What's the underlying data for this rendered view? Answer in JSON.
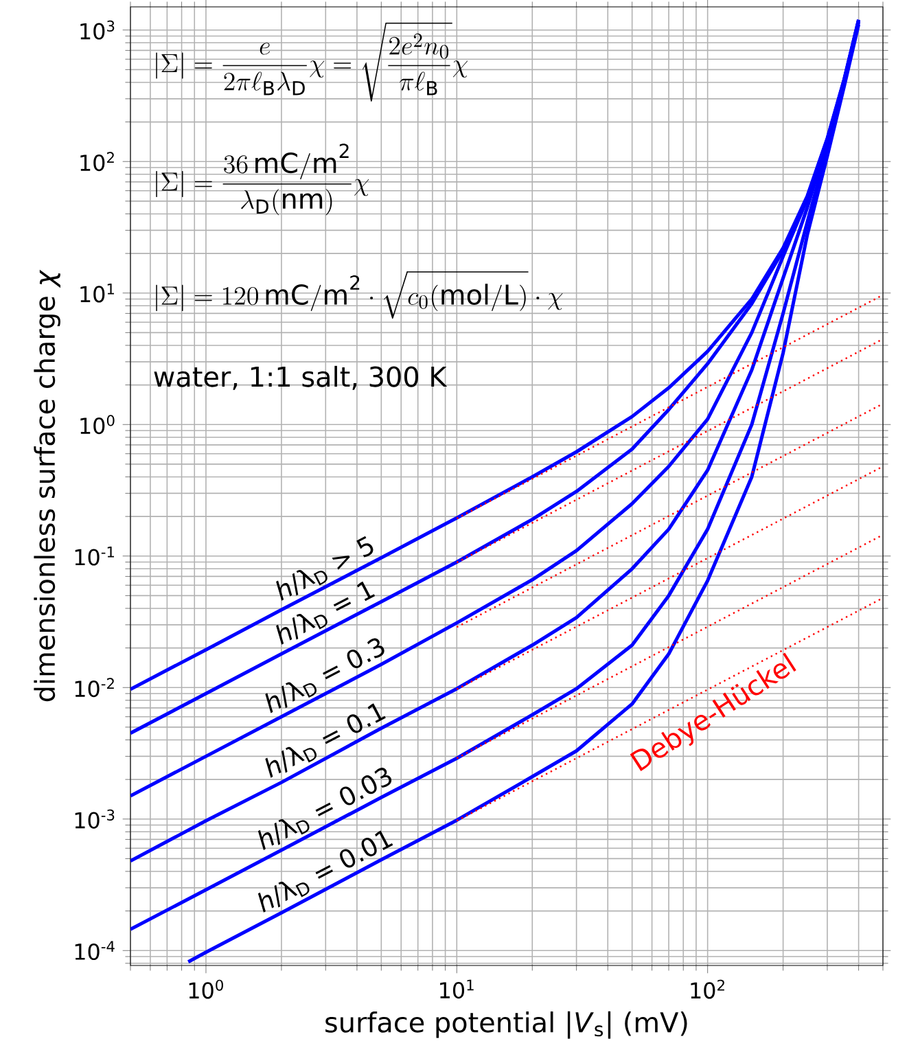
{
  "chart_data": {
    "type": "line",
    "log": "xy",
    "grid": true,
    "xlabel": "surface potential |*V*$_{s}$| (mV)",
    "ylabel": "dimensionless surface charge *χ*",
    "xlim": [
      0.5,
      500
    ],
    "ylim": [
      7.7e-05,
      1500
    ],
    "xticks": [
      {
        "value": 1,
        "label": "10$^{0}$"
      },
      {
        "value": 10,
        "label": "10$^{1}$"
      },
      {
        "value": 100,
        "label": "10$^{2}$"
      }
    ],
    "yticks": [
      {
        "value": 0.0001,
        "label": "10$^{-4}$"
      },
      {
        "value": 0.001,
        "label": "10$^{-3}$"
      },
      {
        "value": 0.01,
        "label": "10$^{-2}$"
      },
      {
        "value": 0.1,
        "label": "10$^{-1}$"
      },
      {
        "value": 1,
        "label": "10$^{0}$"
      },
      {
        "value": 10,
        "label": "10$^{1}$"
      },
      {
        "value": 100,
        "label": "10$^{2}$"
      },
      {
        "value": 1000,
        "label": "10$^{3}$"
      }
    ],
    "annotations": [
      "|\\Sigma| = \\frac{e}{2\\pi\\ell_\\mathrm{B}\\lambda_\\mathrm{D}}\\chi = \\sqrt{\\frac{2e^2n_0}{\\pi\\ell_\\mathrm{B}}}\\chi",
      "|\\Sigma| = \\frac{36\\,\\mathrm{mC/m^2}}{\\lambda_\\mathrm{D}(\\mathrm{nm})}\\chi",
      "|\\Sigma| = 120\\,\\mathrm{mC/m^2}\\cdot\\sqrt{c_0(\\mathrm{mol/L})}\\cdot\\chi",
      "water, 1:1 salt, 300 K",
      "Debye-Hückel"
    ],
    "series": [
      {
        "name": "*h*/λ$_{D}$ > 5",
        "color": "#0000ff",
        "line_style": "solid",
        "x": [
          0.5,
          1,
          2,
          5,
          10,
          20,
          30,
          50,
          70,
          100,
          150,
          200,
          250,
          300,
          350,
          400
        ],
        "values": [
          0.0097,
          0.0194,
          0.039,
          0.097,
          0.195,
          0.4,
          0.62,
          1.15,
          1.9,
          3.6,
          9,
          22,
          55,
          150,
          420,
          1200
        ]
      },
      {
        "name": "*h*/λ$_{D}$ = 1",
        "color": "#0000ff",
        "line_style": "solid",
        "x": [
          0.5,
          1,
          2,
          5,
          10,
          20,
          30,
          50,
          70,
          100,
          150,
          200,
          250,
          300,
          350,
          400
        ],
        "values": [
          0.0045,
          0.009,
          0.018,
          0.045,
          0.09,
          0.19,
          0.31,
          0.65,
          1.3,
          2.9,
          8.3,
          21,
          54,
          148,
          415,
          1190
        ]
      },
      {
        "name": "*h*/λ$_{D}$ = 0.3",
        "color": "#0000ff",
        "line_style": "solid",
        "x": [
          0.5,
          1,
          2,
          5,
          10,
          20,
          30,
          50,
          70,
          100,
          150,
          200,
          250,
          300,
          350,
          400
        ],
        "values": [
          0.0015,
          0.003,
          0.006,
          0.015,
          0.031,
          0.066,
          0.11,
          0.25,
          0.48,
          1.1,
          5,
          19,
          52,
          145,
          410,
          1180
        ]
      },
      {
        "name": "*h*/λ$_{D}$ = 0.1",
        "color": "#0000ff",
        "line_style": "solid",
        "x": [
          0.5,
          1,
          2,
          5,
          10,
          20,
          30,
          50,
          70,
          100,
          150,
          200,
          250,
          300,
          350,
          400
        ],
        "values": [
          0.00048,
          0.00097,
          0.0019,
          0.0049,
          0.0098,
          0.021,
          0.034,
          0.08,
          0.16,
          0.45,
          2.6,
          13,
          45,
          140,
          400,
          1170
        ]
      },
      {
        "name": "*h*/λ$_{D}$ = 0.03",
        "color": "#0000ff",
        "line_style": "solid",
        "x": [
          0.5,
          1,
          2,
          5,
          10,
          20,
          30,
          50,
          70,
          100,
          150,
          200,
          250,
          300,
          350,
          400
        ],
        "values": [
          0.000145,
          0.00029,
          0.00058,
          0.00146,
          0.0029,
          0.0062,
          0.0098,
          0.021,
          0.05,
          0.16,
          1.0,
          7,
          35,
          125,
          390,
          1150
        ]
      },
      {
        "name": "*h*/λ$_{D}$ = 0.01",
        "color": "#0000ff",
        "line_style": "solid",
        "x": [
          0.85,
          1,
          2,
          5,
          10,
          20,
          30,
          50,
          70,
          100,
          150,
          200,
          250,
          300,
          350,
          400
        ],
        "values": [
          8.2e-05,
          9.7e-05,
          0.000194,
          0.00049,
          0.00098,
          0.0021,
          0.0033,
          0.0075,
          0.018,
          0.065,
          0.4,
          3.5,
          28,
          110,
          370,
          1100
        ]
      },
      {
        "color": "#ff0000",
        "line_style": "dotted",
        "x": [
          10,
          500
        ],
        "values": [
          0.193,
          9.67
        ]
      },
      {
        "color": "#ff0000",
        "line_style": "dotted",
        "x": [
          10,
          500
        ],
        "values": [
          0.0893,
          4.47
        ]
      },
      {
        "color": "#ff0000",
        "line_style": "dotted",
        "x": [
          10,
          500
        ],
        "values": [
          0.0288,
          1.44
        ]
      },
      {
        "color": "#ff0000",
        "line_style": "dotted",
        "x": [
          10,
          500
        ],
        "values": [
          0.0097,
          0.48
        ]
      },
      {
        "color": "#ff0000",
        "line_style": "dotted",
        "x": [
          10,
          500
        ],
        "values": [
          0.0029,
          0.145
        ]
      },
      {
        "color": "#ff0000",
        "line_style": "dotted",
        "x": [
          10,
          500
        ],
        "values": [
          0.00097,
          0.048
        ]
      }
    ]
  }
}
